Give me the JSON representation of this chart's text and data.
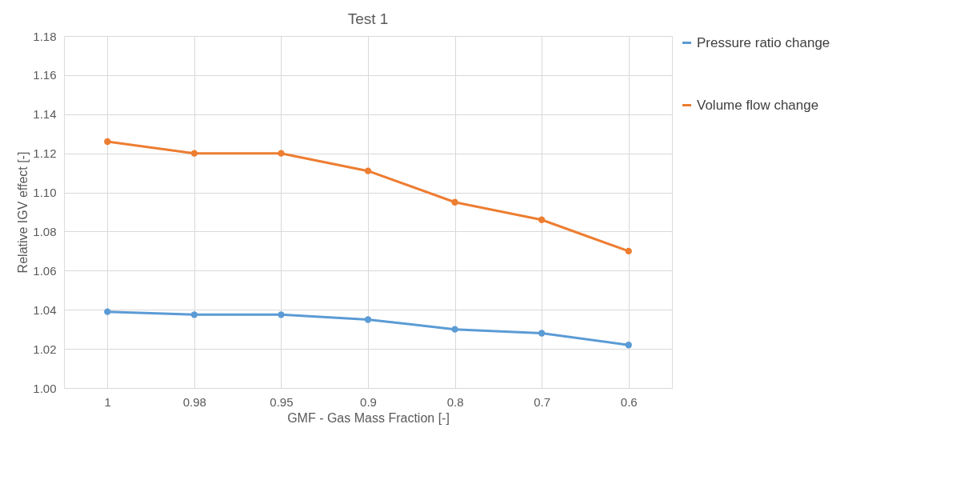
{
  "chart_data": {
    "type": "line",
    "title": "Test 1",
    "xlabel": "GMF - Gas Mass Fraction [-]",
    "ylabel": "Relative IGV effect [-]",
    "categories": [
      "1",
      "0.98",
      "0.95",
      "0.9",
      "0.8",
      "0.7",
      "0.6"
    ],
    "series": [
      {
        "name": "Pressure ratio change",
        "color": "#5b9bd5",
        "values": [
          1.039,
          1.0375,
          1.0375,
          1.035,
          1.03,
          1.028,
          1.022
        ]
      },
      {
        "name": "Volume flow change",
        "color": "#ed7d31",
        "values": [
          1.126,
          1.12,
          1.12,
          1.111,
          1.095,
          1.086,
          1.07
        ]
      }
    ],
    "ylim": [
      1.0,
      1.18
    ],
    "yticks": [
      {
        "value": 1.0,
        "label": "1.00"
      },
      {
        "value": 1.02,
        "label": "1.02"
      },
      {
        "value": 1.04,
        "label": "1.04"
      },
      {
        "value": 1.06,
        "label": "1.06"
      },
      {
        "value": 1.08,
        "label": "1.08"
      },
      {
        "value": 1.1,
        "label": "1.10"
      },
      {
        "value": 1.12,
        "label": "1.12"
      },
      {
        "value": 1.14,
        "label": "1.14"
      },
      {
        "value": 1.16,
        "label": "1.16"
      },
      {
        "value": 1.18,
        "label": "1.18"
      }
    ],
    "grid": true,
    "legend": "top right",
    "marker": "circle",
    "line_style": "solid"
  }
}
